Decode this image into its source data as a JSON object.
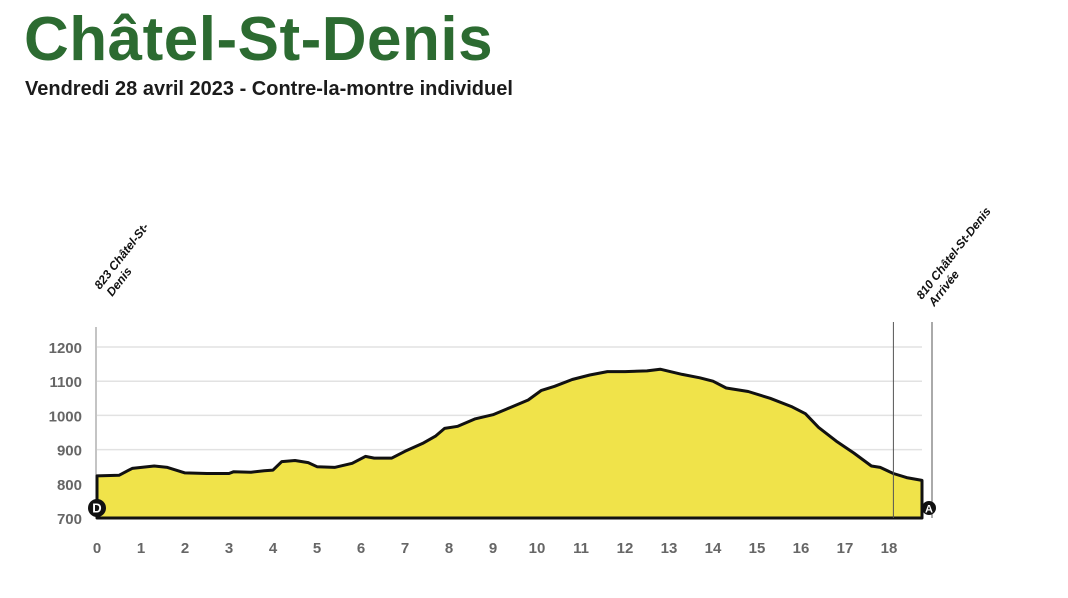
{
  "header": {
    "title": "Châtel-St-Denis",
    "subtitle": "Vendredi 28 avril 2023 - Contre-la-montre individuel"
  },
  "chart_data": {
    "type": "area",
    "title": "Châtel-St-Denis",
    "subtitle": "Vendredi 28 avril 2023 - Contre-la-montre individuel",
    "xlabel": "",
    "ylabel": "",
    "xlim": [
      0,
      18.75
    ],
    "ylim": [
      700,
      1250
    ],
    "xticks": [
      0,
      1,
      2,
      3,
      4,
      5,
      6,
      7,
      8,
      9,
      10,
      11,
      12,
      13,
      14,
      15,
      16,
      17,
      18
    ],
    "yticks": [
      700,
      800,
      900,
      1000,
      1100,
      1200
    ],
    "grid": true,
    "fill_color": "#f0e34a",
    "line_color": "#111111",
    "profile": [
      [
        0,
        823
      ],
      [
        0.5,
        825
      ],
      [
        0.8,
        845
      ],
      [
        1.3,
        852
      ],
      [
        1.6,
        848
      ],
      [
        2,
        832
      ],
      [
        2.5,
        830
      ],
      [
        3,
        830
      ],
      [
        3.1,
        835
      ],
      [
        3.5,
        834
      ],
      [
        3.8,
        838
      ],
      [
        4,
        840
      ],
      [
        4.2,
        865
      ],
      [
        4.5,
        868
      ],
      [
        4.8,
        862
      ],
      [
        5,
        850
      ],
      [
        5.4,
        848
      ],
      [
        5.8,
        860
      ],
      [
        6.1,
        880
      ],
      [
        6.3,
        875
      ],
      [
        6.7,
        875
      ],
      [
        7,
        895
      ],
      [
        7.4,
        918
      ],
      [
        7.7,
        940
      ],
      [
        7.9,
        962
      ],
      [
        8.2,
        968
      ],
      [
        8.6,
        990
      ],
      [
        9,
        1002
      ],
      [
        9.3,
        1018
      ],
      [
        9.8,
        1045
      ],
      [
        10.1,
        1073
      ],
      [
        10.4,
        1085
      ],
      [
        10.8,
        1105
      ],
      [
        11.2,
        1118
      ],
      [
        11.6,
        1128
      ],
      [
        12,
        1128
      ],
      [
        12.5,
        1130
      ],
      [
        12.8,
        1135
      ],
      [
        13.3,
        1120
      ],
      [
        13.7,
        1110
      ],
      [
        14,
        1100
      ],
      [
        14.3,
        1080
      ],
      [
        14.8,
        1070
      ],
      [
        15.3,
        1050
      ],
      [
        15.8,
        1025
      ],
      [
        16.1,
        1005
      ],
      [
        16.4,
        965
      ],
      [
        16.8,
        925
      ],
      [
        17.2,
        890
      ],
      [
        17.6,
        852
      ],
      [
        17.8,
        848
      ],
      [
        18.1,
        830
      ],
      [
        18.4,
        818
      ],
      [
        18.75,
        810
      ]
    ],
    "markers": [
      {
        "km": 0,
        "letter": "D",
        "label_line1": "823 Châtel-St-",
        "label_line2": "Denis"
      },
      {
        "km": 18.75,
        "letter": "A",
        "label_line1": "810 Châtel-St-Denis",
        "label_line2": "Arrivée"
      }
    ],
    "reference_line_km": 18.1
  }
}
